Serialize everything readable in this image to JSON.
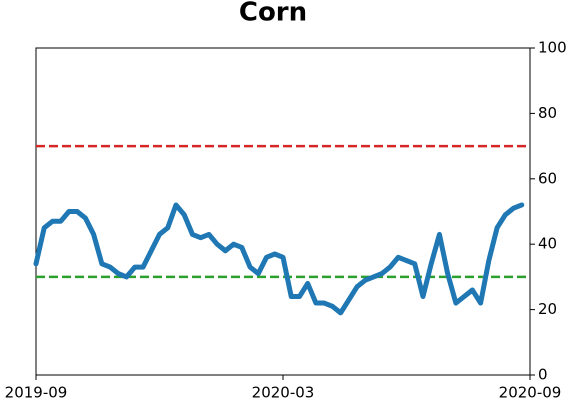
{
  "chart_data": {
    "type": "line",
    "title": "Corn",
    "categories": [
      "2019-09",
      null,
      null,
      null,
      null,
      null,
      null,
      null,
      null,
      null,
      null,
      null,
      null,
      null,
      null,
      null,
      null,
      null,
      null,
      null,
      null,
      null,
      null,
      null,
      null,
      null,
      null,
      null,
      null,
      null,
      "2020-03",
      null,
      null,
      null,
      null,
      null,
      null,
      null,
      null,
      null,
      null,
      null,
      null,
      null,
      null,
      null,
      null,
      null,
      null,
      null,
      null,
      null,
      null,
      null,
      null,
      null,
      null,
      null,
      null,
      null,
      "2020-09"
    ],
    "values": [
      34,
      45,
      47,
      47,
      50,
      50,
      48,
      43,
      34,
      33,
      31,
      30,
      33,
      33,
      38,
      43,
      45,
      52,
      49,
      43,
      42,
      43,
      40,
      38,
      40,
      39,
      33,
      31,
      36,
      37,
      36,
      24,
      24,
      28,
      22,
      22,
      21,
      19,
      23,
      27,
      29,
      30,
      31,
      33,
      36,
      35,
      34,
      24,
      34,
      43,
      31,
      22,
      24,
      26,
      22,
      35,
      45,
      49,
      51,
      52,
      null
    ],
    "color": "#1f77b4",
    "ylim": [
      0,
      100
    ],
    "yticks": [
      0,
      20,
      40,
      60,
      80,
      100
    ],
    "y_axis_side": "right",
    "hlines": [
      {
        "value": 70,
        "color": "#d62728"
      },
      {
        "value": 30,
        "color": "#2ca02c"
      }
    ],
    "hline_style": "dashed"
  }
}
